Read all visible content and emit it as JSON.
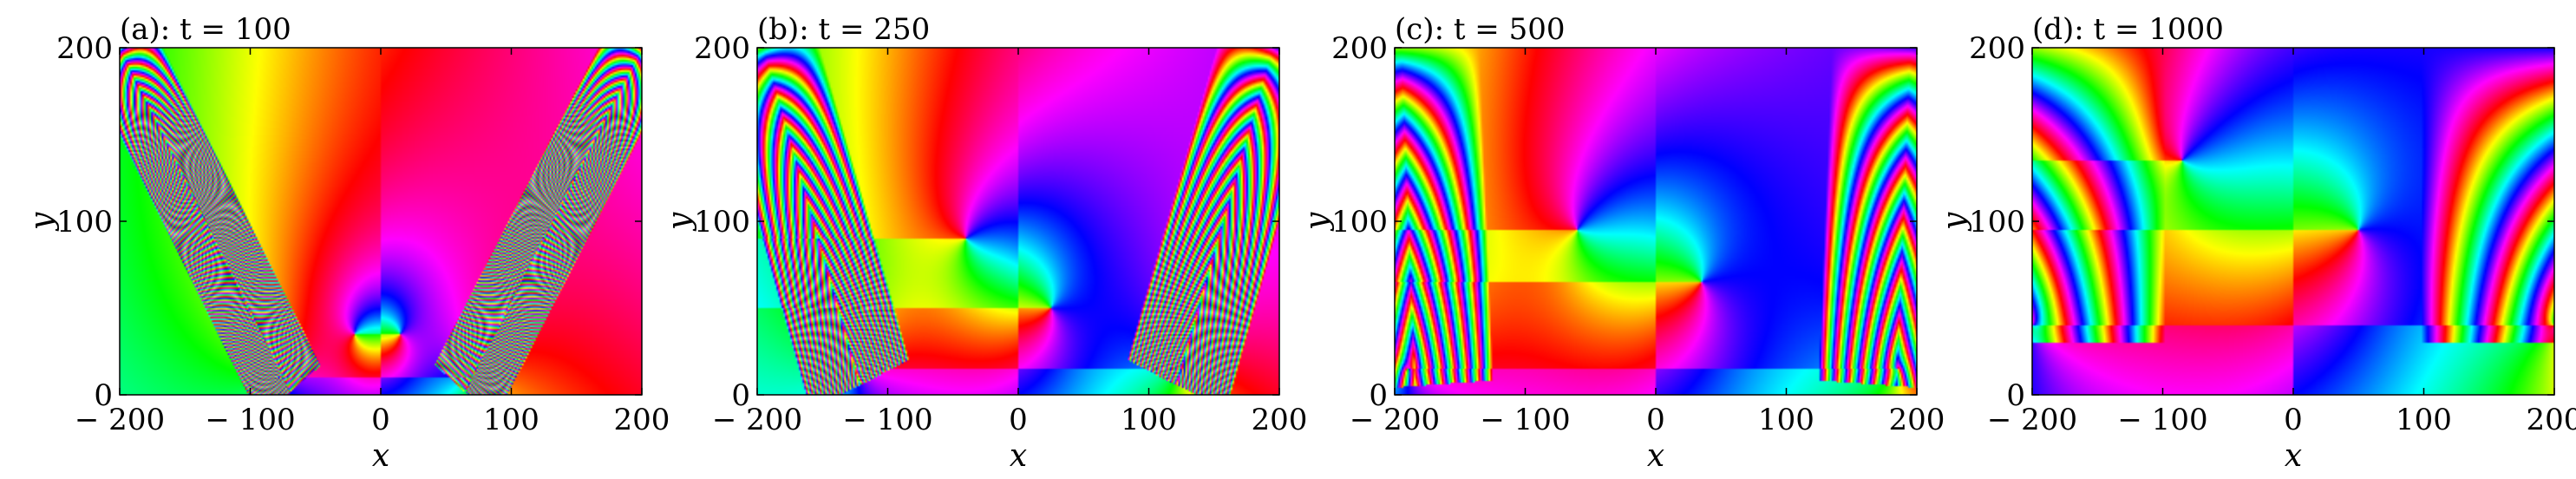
{
  "chart_data": [
    {
      "type": "heatmap",
      "title": "(a): t = 100",
      "xlabel": "x",
      "ylabel": "y",
      "xlim": [
        -200,
        200
      ],
      "ylim": [
        0,
        200
      ],
      "x_ticks": [
        -200,
        -100,
        0,
        100,
        200
      ],
      "y_ticks": [
        0,
        100,
        200
      ],
      "x_tick_labels": [
        "− 200",
        "− 100",
        "0",
        "100",
        "200"
      ],
      "y_tick_labels": [
        "0",
        "100",
        "200"
      ],
      "colormap": "hsv phase",
      "grid": false,
      "defects": [
        {
          "x": -20,
          "y": 35
        },
        {
          "x": 15,
          "y": 35
        },
        {
          "x": -78,
          "y": 10
        },
        {
          "x": 70,
          "y": 10
        }
      ],
      "wave_bands": [
        {
          "from": [
            -200,
            200
          ],
          "to": [
            -75,
            10
          ],
          "period": 7
        },
        {
          "from": [
            200,
            200
          ],
          "to": [
            70,
            10
          ],
          "period": 7
        }
      ]
    },
    {
      "type": "heatmap",
      "title": "(b): t = 250",
      "xlabel": "x",
      "ylabel": "y",
      "xlim": [
        -200,
        200
      ],
      "ylim": [
        0,
        200
      ],
      "x_ticks": [
        -200,
        -100,
        0,
        100,
        200
      ],
      "y_ticks": [
        0,
        100,
        200
      ],
      "x_tick_labels": [
        "− 200",
        "− 100",
        "0",
        "100",
        "200"
      ],
      "y_tick_labels": [
        "0",
        "100",
        "200"
      ],
      "colormap": "hsv phase",
      "grid": false,
      "defects": [
        {
          "x": -40,
          "y": 90
        },
        {
          "x": 25,
          "y": 50
        },
        {
          "x": -125,
          "y": 15
        },
        {
          "x": 125,
          "y": 15
        }
      ],
      "wave_bands": [
        {
          "from": [
            -195,
            200
          ],
          "to": [
            -125,
            15
          ],
          "period": 16
        },
        {
          "from": [
            195,
            200
          ],
          "to": [
            125,
            15
          ],
          "period": 16
        }
      ]
    },
    {
      "type": "heatmap",
      "title": "(c): t = 500",
      "xlabel": "x",
      "ylabel": "y",
      "xlim": [
        -200,
        200
      ],
      "ylim": [
        0,
        200
      ],
      "x_ticks": [
        -200,
        -100,
        0,
        100,
        200
      ],
      "y_ticks": [
        0,
        100,
        200
      ],
      "x_tick_labels": [
        "− 200",
        "− 100",
        "0",
        "100",
        "200"
      ],
      "y_tick_labels": [
        "0",
        "100",
        "200"
      ],
      "colormap": "hsv phase",
      "grid": false,
      "defects": [
        {
          "x": -60,
          "y": 95
        },
        {
          "x": 35,
          "y": 65
        },
        {
          "x": -190,
          "y": 15
        },
        {
          "x": 185,
          "y": 15
        }
      ],
      "wave_bands": [
        {
          "from": [
            -195,
            200
          ],
          "to": [
            -185,
            15
          ],
          "period": 30
        },
        {
          "from": [
            195,
            200
          ],
          "to": [
            185,
            15
          ],
          "period": 30
        }
      ]
    },
    {
      "type": "heatmap",
      "title": "(d): t = 1000",
      "xlabel": "x",
      "ylabel": "y",
      "xlim": [
        -200,
        200
      ],
      "ylim": [
        0,
        200
      ],
      "x_ticks": [
        -200,
        -100,
        0,
        100,
        200
      ],
      "y_ticks": [
        0,
        100,
        200
      ],
      "x_tick_labels": [
        "− 200",
        "− 100",
        "0",
        "100",
        "200"
      ],
      "y_tick_labels": [
        "0",
        "100",
        "200"
      ],
      "colormap": "hsv phase",
      "grid": false,
      "defects": [
        {
          "x": -85,
          "y": 135
        },
        {
          "x": 50,
          "y": 95
        },
        {
          "x": -200,
          "y": 40
        },
        {
          "x": 200,
          "y": 40
        }
      ],
      "wave_bands": [
        {
          "from": [
            -200,
            200
          ],
          "to": [
            -200,
            40
          ],
          "period": 60
        },
        {
          "from": [
            200,
            200
          ],
          "to": [
            200,
            40
          ],
          "period": 60
        }
      ]
    }
  ]
}
